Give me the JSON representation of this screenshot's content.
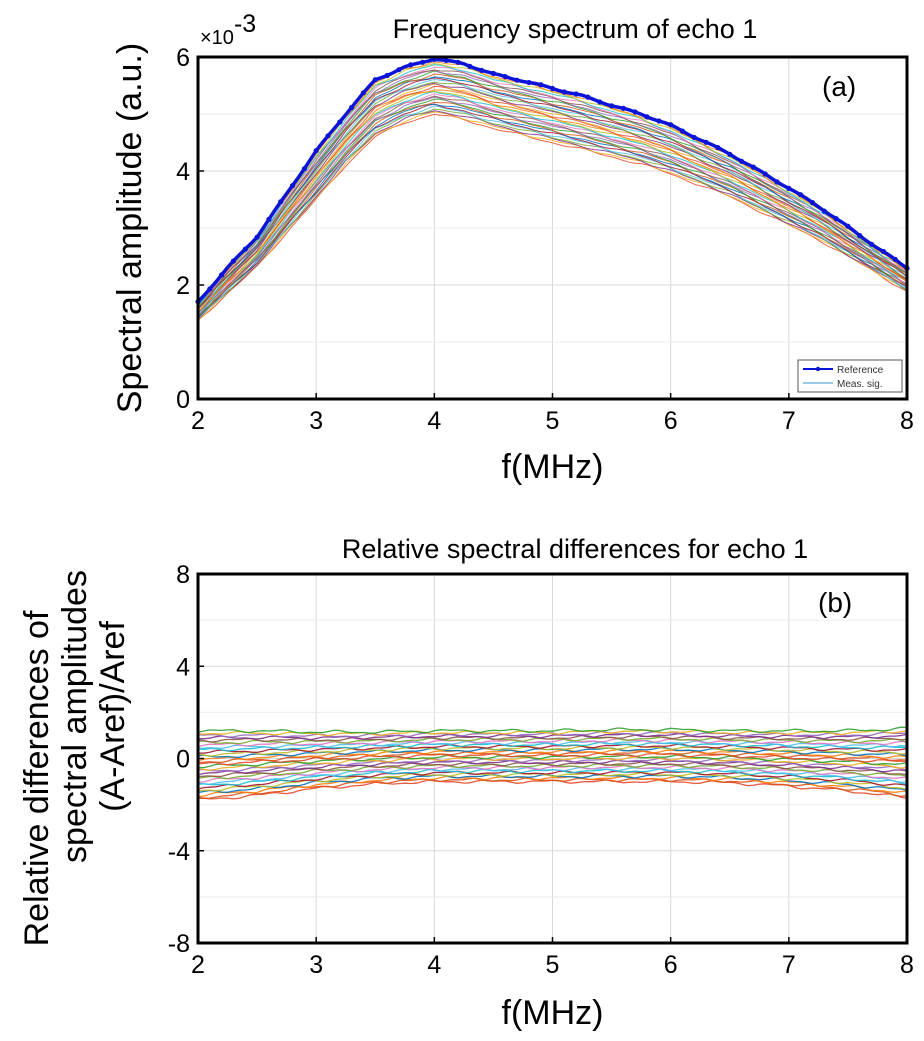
{
  "chart_data": [
    {
      "type": "line",
      "title": "Frequency spectrum of echo 1",
      "panel_label": "(a)",
      "xlabel": "f(MHz)",
      "ylabel": "Spectral amplitude (a.u.)",
      "y_multiplier": "×10-3",
      "y_multiplier_base": "×10",
      "y_multiplier_exp": "-3",
      "xlim": [
        2,
        8
      ],
      "ylim": [
        0,
        6
      ],
      "x_ticks": [
        "2",
        "3",
        "4",
        "5",
        "6",
        "7",
        "8"
      ],
      "y_ticks": [
        "0",
        "2",
        "4",
        "6"
      ],
      "grid": true,
      "legend_position": "bottom-right",
      "legend": [
        {
          "label": "Reference",
          "color": "#0a14d8"
        },
        {
          "label": "Meas. sig.",
          "color": "#5fa8d8"
        }
      ],
      "series": [
        {
          "name": "Reference",
          "color": "#0a14d8",
          "x": [
            2.0,
            2.25,
            2.5,
            2.75,
            3.0,
            3.25,
            3.5,
            3.75,
            4.0,
            4.25,
            4.5,
            4.75,
            5.0,
            5.25,
            5.5,
            5.75,
            6.0,
            6.25,
            6.5,
            6.75,
            7.0,
            7.25,
            7.5,
            7.75,
            8.0
          ],
          "y": [
            1.7,
            2.3,
            2.85,
            3.6,
            4.35,
            5.0,
            5.6,
            5.82,
            5.97,
            5.88,
            5.7,
            5.58,
            5.45,
            5.32,
            5.15,
            5.0,
            4.8,
            4.55,
            4.3,
            4.0,
            3.7,
            3.38,
            3.02,
            2.65,
            2.3
          ]
        }
      ],
      "measured_band": {
        "name": "Meas. sig.",
        "count": 30,
        "x": [
          2.0,
          2.25,
          2.5,
          2.75,
          3.0,
          3.25,
          3.5,
          3.75,
          4.0,
          4.25,
          4.5,
          4.75,
          5.0,
          5.25,
          5.5,
          5.75,
          6.0,
          6.25,
          6.5,
          6.75,
          7.0,
          7.25,
          7.5,
          7.75,
          8.0
        ],
        "y_upper": [
          1.68,
          2.28,
          2.82,
          3.57,
          4.3,
          4.95,
          5.55,
          5.78,
          5.92,
          5.84,
          5.66,
          5.54,
          5.41,
          5.28,
          5.11,
          4.96,
          4.76,
          4.51,
          4.26,
          3.96,
          3.66,
          3.34,
          2.98,
          2.61,
          2.27
        ],
        "y_lower": [
          1.38,
          1.85,
          2.32,
          2.92,
          3.5,
          4.1,
          4.6,
          4.85,
          5.0,
          4.9,
          4.75,
          4.62,
          4.5,
          4.38,
          4.25,
          4.12,
          3.95,
          3.75,
          3.55,
          3.3,
          3.05,
          2.8,
          2.5,
          2.2,
          1.88
        ]
      }
    },
    {
      "type": "line",
      "title": "Relative spectral differences for  echo 1",
      "panel_label": "(b)",
      "xlabel": "f(MHz)",
      "ylabel_lines": [
        "Relative differences of",
        "spectral amplitudes",
        "(A-Aref)/Aref"
      ],
      "xlim": [
        2,
        8
      ],
      "ylim": [
        -8,
        8
      ],
      "x_ticks": [
        "2",
        "3",
        "4",
        "5",
        "6",
        "7",
        "8"
      ],
      "y_ticks": [
        "-8",
        "-4",
        "0",
        "4",
        "8"
      ],
      "grid": true,
      "band": {
        "count": 30,
        "x": [
          2.0,
          2.5,
          3.0,
          3.5,
          4.0,
          4.5,
          5.0,
          5.5,
          6.0,
          6.5,
          7.0,
          7.5,
          8.0
        ],
        "y_upper": [
          1.2,
          1.2,
          1.15,
          1.15,
          1.2,
          1.2,
          1.2,
          1.25,
          1.25,
          1.2,
          1.2,
          1.2,
          1.3
        ],
        "y_lower": [
          -1.8,
          -1.6,
          -1.3,
          -1.1,
          -1.0,
          -1.0,
          -1.0,
          -1.0,
          -1.0,
          -1.05,
          -1.2,
          -1.4,
          -1.7
        ]
      }
    }
  ]
}
